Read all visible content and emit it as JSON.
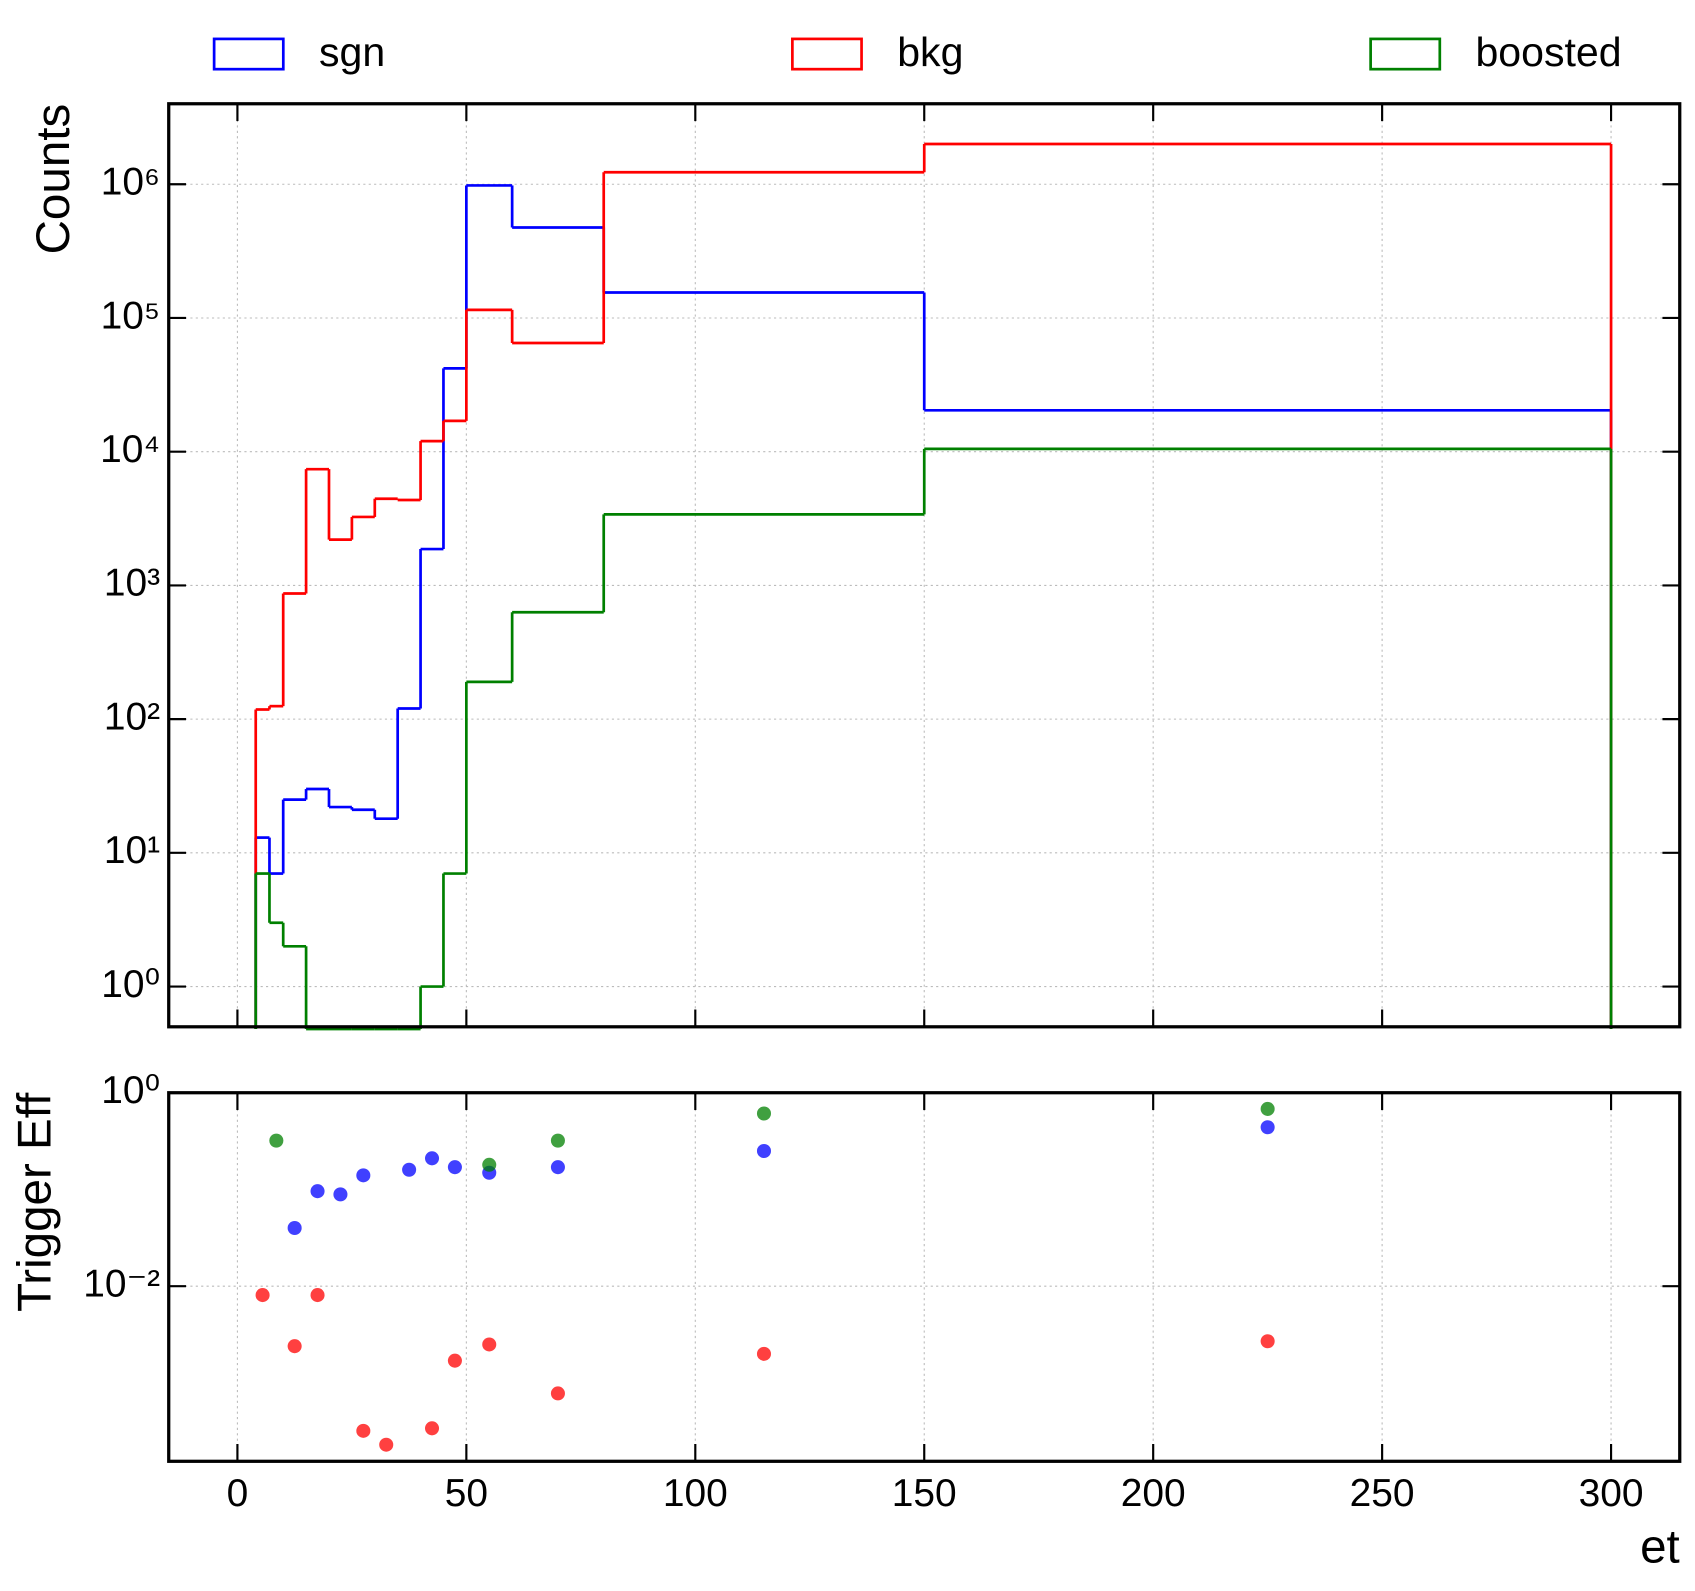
{
  "chart_data": [
    {
      "type": "histogram",
      "ylabel": "Counts",
      "log_y": true,
      "grid": true,
      "legend": "top",
      "bins": [
        4,
        7,
        10,
        15,
        20,
        25,
        30,
        35,
        40,
        45,
        50,
        60,
        80,
        150,
        300
      ],
      "xlim": [
        -15,
        315
      ],
      "ylim": [
        0.5,
        4000000
      ],
      "yticks": [
        {
          "value": 1,
          "label": "10⁰"
        },
        {
          "value": 10,
          "label": "10¹"
        },
        {
          "value": 100,
          "label": "10²"
        },
        {
          "value": 1000,
          "label": "10³"
        },
        {
          "value": 10000,
          "label": "10⁴"
        },
        {
          "value": 100000,
          "label": "10⁵"
        },
        {
          "value": 1000000,
          "label": "10⁶"
        }
      ],
      "series": [
        {
          "name": "sgn",
          "color": "#0000ff",
          "values": [
            13,
            7,
            25,
            30,
            22,
            21,
            18,
            120,
            1870,
            42000,
            980000,
            475000,
            155000,
            20400
          ]
        },
        {
          "name": "bkg",
          "color": "#ff0000",
          "values": [
            118,
            125,
            870,
            7400,
            2200,
            3250,
            4450,
            4350,
            12000,
            17000,
            115000,
            65000,
            1230000,
            2000000
          ]
        },
        {
          "name": "boosted",
          "color": "#008000",
          "values": [
            7,
            3,
            2,
            0,
            0,
            0,
            0,
            0,
            1,
            7,
            190,
            630,
            3400,
            10500
          ]
        }
      ]
    },
    {
      "type": "scatter",
      "ylabel": "Trigger Eff",
      "xlabel": "et",
      "log_y": true,
      "grid": true,
      "x": [
        5.5,
        8.5,
        12.5,
        17.5,
        22.5,
        27.5,
        32.5,
        37.5,
        42.5,
        47.5,
        55,
        70,
        115,
        225
      ],
      "xlim": [
        -15,
        315
      ],
      "xticks": [
        0,
        50,
        100,
        150,
        200,
        250,
        300
      ],
      "ylim": [
        0.000155,
        1
      ],
      "yticks": [
        {
          "value": 1,
          "label": "10⁰"
        },
        {
          "value": 0.01,
          "label": "10⁻²"
        }
      ],
      "series": [
        {
          "color": "#0000ff",
          "values": [
            null,
            null,
            0.04,
            0.096,
            0.089,
            0.14,
            null,
            0.16,
            0.21,
            0.17,
            0.149,
            0.17,
            0.25,
            0.44
          ]
        },
        {
          "color": "#ff0000",
          "values": [
            0.0081,
            null,
            0.0024,
            0.0081,
            null,
            0.00032,
            0.00023,
            null,
            0.00034,
            0.0017,
            0.0025,
            0.00078,
            0.002,
            0.0027
          ]
        },
        {
          "color": "#008000",
          "values": [
            null,
            0.32,
            null,
            null,
            null,
            null,
            null,
            null,
            null,
            null,
            0.18,
            0.32,
            0.61,
            0.68
          ]
        }
      ]
    }
  ]
}
